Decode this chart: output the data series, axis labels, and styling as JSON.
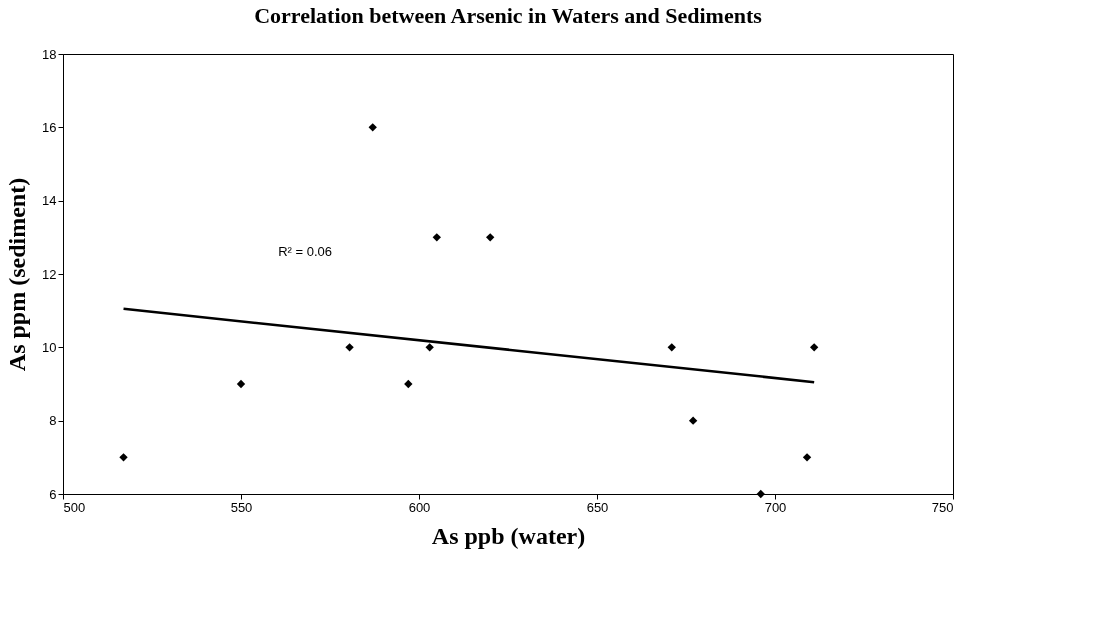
{
  "chart_data": {
    "type": "scatter",
    "title": "Correlation between Arsenic in Waters and Sediments",
    "xlabel": "As ppb (water)",
    "ylabel": "As ppm (sediment)",
    "xlim": [
      500,
      750
    ],
    "xticks": [
      500,
      550,
      600,
      650,
      700,
      750
    ],
    "ylim": [
      6,
      18
    ],
    "yticks": [
      6,
      8,
      10,
      12,
      14,
      16,
      18
    ],
    "grid": false,
    "marker": "diamond",
    "annotations": [
      "R² = 0.06"
    ],
    "series": [
      {
        "color": "#000000",
        "x": [
          517,
          550,
          580.5,
          587,
          597,
          603,
          605,
          620,
          671,
          677,
          696,
          709,
          711
        ],
        "values": [
          7,
          9,
          10,
          16,
          9,
          10,
          13,
          13,
          10,
          8,
          6,
          7,
          10
        ]
      },
      {
        "type": "line",
        "marker": "none",
        "color": "#000000",
        "x": [
          517,
          711
        ],
        "values": [
          11.05,
          9.05
        ]
      }
    ]
  }
}
